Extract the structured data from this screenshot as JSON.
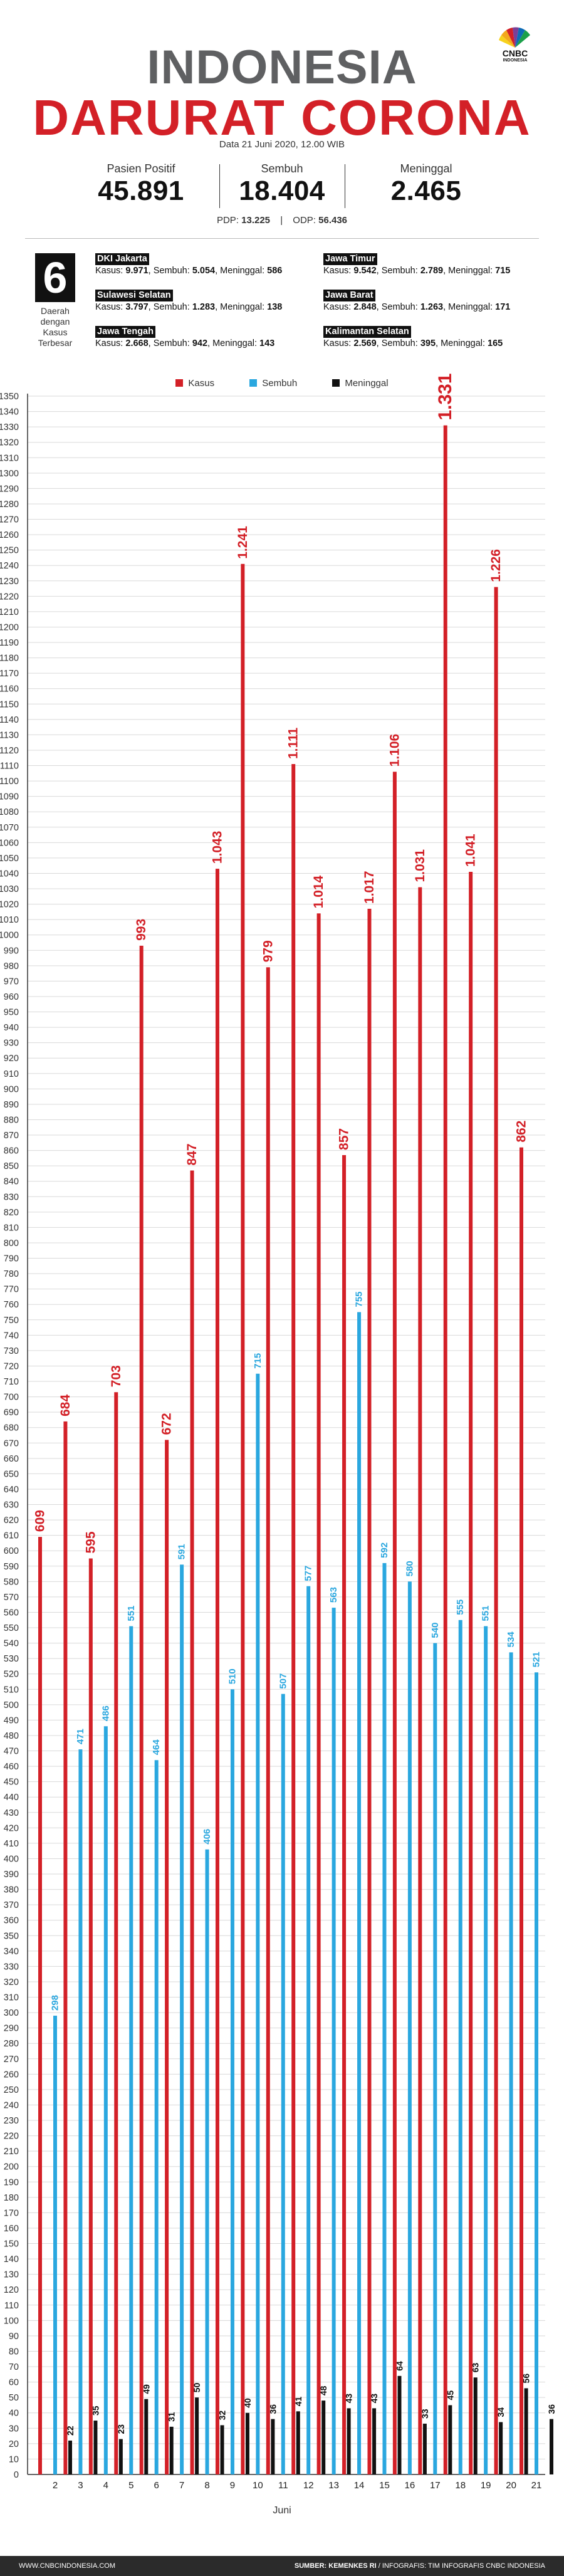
{
  "header": {
    "title_line1": "INDONESIA",
    "title_line2": "DARURAT CORONA",
    "logo_text": "CNBC",
    "logo_sub": "INDONESIA",
    "date": "Data 21 Juni 2020, 12.00 WIB"
  },
  "stats": [
    {
      "label": "Pasien Positif",
      "value": "45.891"
    },
    {
      "label": "Sembuh",
      "value": "18.404"
    },
    {
      "label": "Meninggal",
      "value": "2.465"
    }
  ],
  "pdp": {
    "pdp_label": "PDP:",
    "pdp_value": "13.225",
    "odp_label": "ODP:",
    "odp_value": "56.436"
  },
  "regions": {
    "count": "6",
    "desc_lines": [
      "Daerah",
      "dengan",
      "Kasus",
      "Terbesar"
    ],
    "items": [
      {
        "name": "DKI Jakarta",
        "kasus": "9.971",
        "sembuh": "5.054",
        "meninggal": "586"
      },
      {
        "name": "Jawa Timur",
        "kasus": "9.542",
        "sembuh": "2.789",
        "meninggal": "715"
      },
      {
        "name": "Sulawesi Selatan",
        "kasus": "3.797",
        "sembuh": "1.283",
        "meninggal": "138"
      },
      {
        "name": "Jawa Barat",
        "kasus": "2.848",
        "sembuh": "1.263",
        "meninggal": "171"
      },
      {
        "name": "Jawa Tengah",
        "kasus": "2.668",
        "sembuh": "942",
        "meninggal": "143"
      },
      {
        "name": "Kalimantan Selatan",
        "kasus": "2.569",
        "sembuh": "395",
        "meninggal": "165"
      }
    ],
    "labels": {
      "kasus": "Kasus:",
      "sembuh": "Sembuh:",
      "meninggal": "Meninggal:"
    }
  },
  "legend": [
    {
      "name": "Kasus",
      "color": "#d32027"
    },
    {
      "name": "Sembuh",
      "color": "#2aa7df"
    },
    {
      "name": "Meninggal",
      "color": "#111111"
    }
  ],
  "chart_data": {
    "type": "bar",
    "xlabel": "Juni",
    "ylabel": "",
    "ylim": [
      0,
      1350
    ],
    "ytick_step": 10,
    "grid": true,
    "legend_position": "top",
    "categories": [
      "2",
      "3",
      "4",
      "5",
      "6",
      "7",
      "8",
      "9",
      "10",
      "11",
      "12",
      "13",
      "14",
      "15",
      "16",
      "17",
      "18",
      "19",
      "20",
      "21"
    ],
    "series": [
      {
        "name": "Kasus",
        "color": "#d32027",
        "values": [
          609,
          684,
          595,
          703,
          993,
          672,
          847,
          1043,
          1241,
          979,
          1111,
          1014,
          857,
          1017,
          1106,
          1031,
          1331,
          1041,
          1226,
          862
        ]
      },
      {
        "name": "Sembuh",
        "color": "#2aa7df",
        "values": [
          298,
          471,
          486,
          551,
          464,
          591,
          406,
          510,
          715,
          507,
          577,
          563,
          755,
          592,
          580,
          540,
          555,
          551,
          534,
          521
        ]
      },
      {
        "name": "Meninggal",
        "color": "#111111",
        "values": [
          22,
          35,
          23,
          49,
          31,
          50,
          32,
          40,
          36,
          41,
          48,
          43,
          43,
          64,
          33,
          45,
          63,
          34,
          56,
          36
        ]
      }
    ],
    "data_labels": [
      [
        "609",
        "684",
        "595",
        "703",
        "993",
        "672",
        "847",
        "1.043",
        "1.241",
        "979",
        "1.111",
        "1.014",
        "857",
        "1.017",
        "1.106",
        "1.031",
        "1.331",
        "1.041",
        "1.226",
        "862"
      ],
      [
        "298",
        "471",
        "486",
        "551",
        "464",
        "591",
        "406",
        "510",
        "715",
        "507",
        "577",
        "563",
        "755",
        "592",
        "580",
        "540",
        "555",
        "551",
        "534",
        "521"
      ],
      [
        "22",
        "35",
        "23",
        "49",
        "31",
        "50",
        "32",
        "40",
        "36",
        "41",
        "48",
        "43",
        "43",
        "64",
        "33",
        "45",
        "63",
        "34",
        "56",
        "36"
      ]
    ]
  },
  "footer": {
    "left": "WWW.CNBCINDONESIA.COM",
    "source": "SUMBER: KEMENKES RI",
    "credit": "INFOGRAFIS: TIM INFOGRAFIS CNBC INDONESIA"
  }
}
